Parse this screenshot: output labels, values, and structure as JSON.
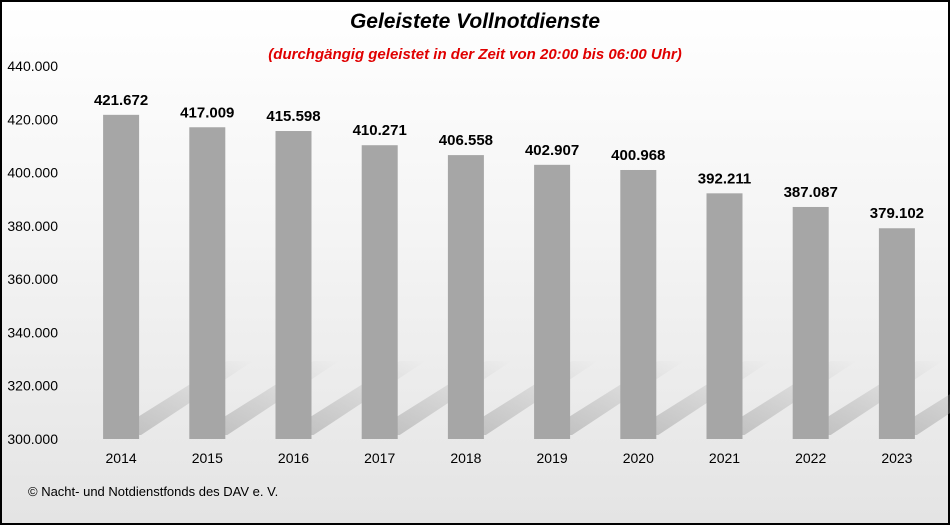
{
  "chart_data": {
    "type": "bar",
    "title": "Geleistete  Vollnotdienste",
    "subtitle": "(durchgängig geleistet in der Zeit von 20:00 bis 06:00 Uhr)",
    "xlabel": "",
    "ylabel": "",
    "categories": [
      "2014",
      "2015",
      "2016",
      "2017",
      "2018",
      "2019",
      "2020",
      "2021",
      "2022",
      "2023"
    ],
    "values": [
      421672,
      417009,
      415598,
      410271,
      406558,
      402907,
      400968,
      392211,
      387087,
      379102
    ],
    "data_labels": [
      "421.672",
      "417.009",
      "415.598",
      "410.271",
      "406.558",
      "402.907",
      "400.968",
      "392.211",
      "387.087",
      "379.102"
    ],
    "ylim": [
      300000,
      440000
    ],
    "yticks": [
      300000,
      320000,
      340000,
      360000,
      380000,
      400000,
      420000,
      440000
    ],
    "ytick_labels": [
      "300.000",
      "320.000",
      "340.000",
      "360.000",
      "380.000",
      "400.000",
      "420.000",
      "440.000"
    ],
    "grid": false,
    "legend": "none",
    "bar_color": "#a6a6a6"
  },
  "footer": {
    "copyright": "© Nacht- und Notdienstfonds  des DAV e. V."
  }
}
